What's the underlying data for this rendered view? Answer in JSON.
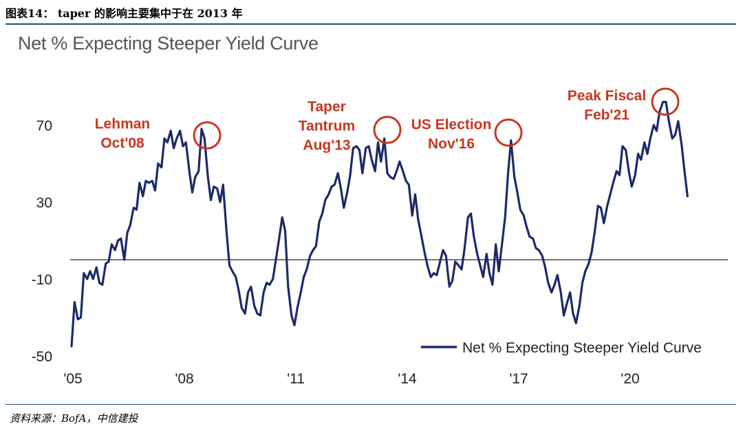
{
  "figure": {
    "header": "图表14： taper 的影响主要集中于在 2013 年",
    "source": "资料来源：BofA，中信建投"
  },
  "chart_data": {
    "type": "line",
    "title": "Net % Expecting Steeper Yield Curve",
    "xlabel": "",
    "ylabel": "",
    "ylim": [
      -50,
      90
    ],
    "xlim": [
      2005,
      2021.6
    ],
    "y_ticks": [
      70,
      30,
      -10,
      -50
    ],
    "x_ticks": [
      {
        "value": 2005,
        "label": "'05"
      },
      {
        "value": 2008,
        "label": "'08"
      },
      {
        "value": 2011,
        "label": "'11"
      },
      {
        "value": 2014,
        "label": "'14"
      },
      {
        "value": 2017,
        "label": "'17"
      },
      {
        "value": 2020,
        "label": "'20"
      }
    ],
    "zero_line": 0,
    "grid": false,
    "legend": {
      "position": "bottom-right",
      "entries": [
        "Net % Expecting Steeper Yield Curve"
      ]
    },
    "colors": {
      "series": "#1b2a6b",
      "annotation": "#c8371f",
      "zero_line": "#444444"
    },
    "series": [
      {
        "name": "Net % Expecting Steeper Yield Curve",
        "x": [
          2005.0,
          2005.08,
          2005.17,
          2005.25,
          2005.33,
          2005.42,
          2005.5,
          2005.58,
          2005.67,
          2005.75,
          2005.83,
          2005.92,
          2006.0,
          2006.08,
          2006.17,
          2006.25,
          2006.33,
          2006.42,
          2006.5,
          2006.58,
          2006.67,
          2006.75,
          2006.83,
          2006.92,
          2007.0,
          2007.08,
          2007.17,
          2007.25,
          2007.33,
          2007.42,
          2007.5,
          2007.58,
          2007.67,
          2007.75,
          2007.83,
          2007.92,
          2008.0,
          2008.08,
          2008.17,
          2008.25,
          2008.33,
          2008.42,
          2008.5,
          2008.58,
          2008.67,
          2008.75,
          2008.83,
          2008.92,
          2009.0,
          2009.08,
          2009.17,
          2009.25,
          2009.33,
          2009.42,
          2009.5,
          2009.58,
          2009.67,
          2009.75,
          2009.83,
          2009.92,
          2010.0,
          2010.08,
          2010.17,
          2010.25,
          2010.33,
          2010.42,
          2010.5,
          2010.58,
          2010.67,
          2010.75,
          2010.83,
          2010.92,
          2011.0,
          2011.08,
          2011.17,
          2011.25,
          2011.33,
          2011.42,
          2011.5,
          2011.58,
          2011.67,
          2011.75,
          2011.83,
          2011.92,
          2012.0,
          2012.08,
          2012.17,
          2012.25,
          2012.33,
          2012.42,
          2012.5,
          2012.58,
          2012.67,
          2012.75,
          2012.83,
          2012.92,
          2013.0,
          2013.08,
          2013.17,
          2013.25,
          2013.33,
          2013.42,
          2013.5,
          2013.58,
          2013.67,
          2013.75,
          2013.83,
          2013.92,
          2014.0,
          2014.08,
          2014.17,
          2014.25,
          2014.33,
          2014.42,
          2014.5,
          2014.58,
          2014.67,
          2014.75,
          2014.83,
          2014.92,
          2015.0,
          2015.08,
          2015.17,
          2015.25,
          2015.33,
          2015.42,
          2015.5,
          2015.58,
          2015.67,
          2015.75,
          2015.83,
          2015.92,
          2016.0,
          2016.08,
          2016.17,
          2016.25,
          2016.33,
          2016.42,
          2016.5,
          2016.58,
          2016.67,
          2016.75,
          2016.83,
          2016.92,
          2017.0,
          2017.08,
          2017.17,
          2017.25,
          2017.33,
          2017.42,
          2017.5,
          2017.58,
          2017.67,
          2017.75,
          2017.83,
          2017.92,
          2018.0,
          2018.08,
          2018.17,
          2018.25,
          2018.33,
          2018.42,
          2018.5,
          2018.58,
          2018.67,
          2018.75,
          2018.83,
          2018.92,
          2019.0,
          2019.08,
          2019.17,
          2019.25,
          2019.33,
          2019.42,
          2019.5,
          2019.58,
          2019.67,
          2019.75,
          2019.83,
          2019.92,
          2020.0,
          2020.08,
          2020.17,
          2020.25,
          2020.33,
          2020.42,
          2020.5,
          2020.58,
          2020.67,
          2020.75,
          2020.83,
          2020.92,
          2021.0,
          2021.08,
          2021.17,
          2021.25,
          2021.33,
          2021.42,
          2021.5,
          2021.58
        ],
        "values": [
          -45,
          -22,
          -31,
          -30,
          -7,
          -10,
          -6,
          -10,
          -4,
          -12,
          -13,
          -2,
          -1,
          8,
          5,
          10,
          11,
          0,
          14,
          18,
          27,
          26,
          40,
          33,
          41,
          40,
          41,
          36,
          50,
          48,
          63,
          61,
          67,
          58,
          63,
          67,
          59,
          61,
          46,
          35,
          43,
          46,
          68,
          63,
          43,
          31,
          38,
          37,
          30,
          39,
          15,
          -3,
          -6,
          -9,
          -16,
          -25,
          -28,
          -17,
          -14,
          -24,
          -28,
          -29,
          -17,
          -12,
          -13,
          -10,
          0,
          10,
          22,
          15,
          -14,
          -29,
          -34,
          -25,
          -17,
          -9,
          -5,
          2,
          5,
          7,
          20,
          24,
          31,
          34,
          38,
          39,
          45,
          37,
          27,
          35,
          44,
          58,
          59,
          57,
          45,
          58,
          59,
          52,
          46,
          61,
          51,
          63,
          45,
          43,
          42,
          46,
          51,
          46,
          41,
          39,
          23,
          34,
          21,
          12,
          4,
          -3,
          -9,
          -7,
          -8,
          -1,
          5,
          2,
          -14,
          -11,
          -1,
          -3,
          -5,
          6,
          22,
          24,
          12,
          3,
          -3,
          -9,
          3,
          -7,
          -13,
          8,
          -6,
          7,
          22,
          45,
          62,
          43,
          35,
          26,
          23,
          17,
          12,
          11,
          6,
          5,
          2,
          -4,
          -12,
          -17,
          -13,
          -8,
          -17,
          -29,
          -23,
          -17,
          -28,
          -33,
          -24,
          -12,
          -6,
          -2,
          4,
          14,
          28,
          27,
          19,
          28,
          34,
          40,
          46,
          44,
          59,
          57,
          46,
          38,
          44,
          55,
          52,
          61,
          55,
          63,
          70,
          67,
          77,
          82,
          82,
          72,
          63,
          65,
          72,
          60,
          46,
          33
        ]
      }
    ],
    "annotations": [
      {
        "lines": [
          "Lehman",
          "Oct'08"
        ],
        "x": 2008.75,
        "y": 65
      },
      {
        "lines": [
          "Taper",
          "Tantrum",
          "Aug'13"
        ],
        "x": 2013.6,
        "y": 68
      },
      {
        "lines": [
          "US Election",
          "Nov'16"
        ],
        "x": 2016.9,
        "y": 66
      },
      {
        "lines": [
          "Peak Fiscal",
          "Feb'21"
        ],
        "x": 2021.1,
        "y": 83
      }
    ]
  }
}
